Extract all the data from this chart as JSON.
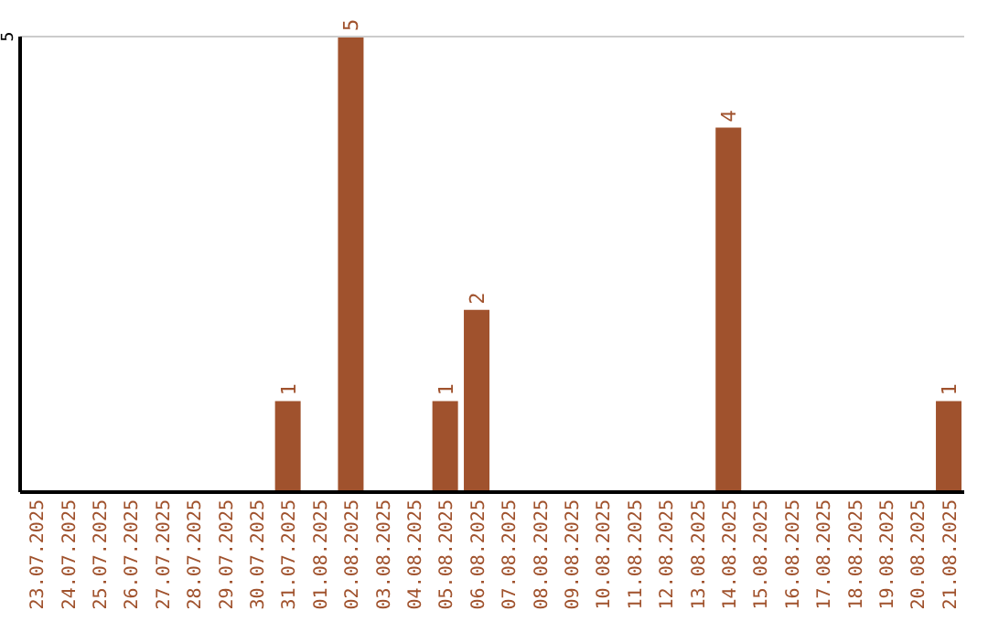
{
  "chart_data": {
    "type": "bar",
    "categories": [
      "23.07.2025",
      "24.07.2025",
      "25.07.2025",
      "26.07.2025",
      "27.07.2025",
      "28.07.2025",
      "29.07.2025",
      "30.07.2025",
      "31.07.2025",
      "01.08.2025",
      "02.08.2025",
      "03.08.2025",
      "04.08.2025",
      "05.08.2025",
      "06.08.2025",
      "07.08.2025",
      "08.08.2025",
      "09.08.2025",
      "10.08.2025",
      "11.08.2025",
      "12.08.2025",
      "13.08.2025",
      "14.08.2025",
      "15.08.2025",
      "16.08.2025",
      "17.08.2025",
      "18.08.2025",
      "19.08.2025",
      "20.08.2025",
      "21.08.2025"
    ],
    "values": [
      0,
      0,
      0,
      0,
      0,
      0,
      0,
      0,
      1,
      0,
      5,
      0,
      0,
      1,
      2,
      0,
      0,
      0,
      0,
      0,
      0,
      0,
      4,
      0,
      0,
      0,
      0,
      0,
      0,
      1
    ],
    "value_labels": [
      null,
      null,
      null,
      null,
      null,
      null,
      null,
      null,
      "1",
      null,
      "5",
      null,
      null,
      "1",
      "2",
      null,
      null,
      null,
      null,
      null,
      null,
      null,
      "4",
      null,
      null,
      null,
      null,
      null,
      null,
      "1"
    ],
    "color": "#a0522d",
    "ylim": [
      0,
      5
    ],
    "yticks": [
      5
    ],
    "ref_lines": [
      {
        "axis": "y",
        "value": 5,
        "color": "#cccccc"
      }
    ]
  }
}
